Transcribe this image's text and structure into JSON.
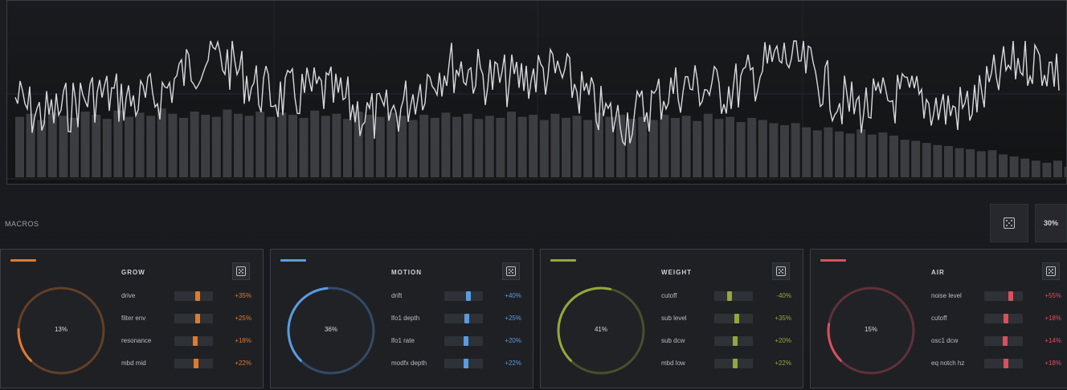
{
  "waveform": {
    "amplitude": [
      0.58,
      0.61,
      0.55,
      0.62,
      0.59,
      0.57,
      0.63,
      0.6,
      0.56,
      0.64,
      0.58,
      0.62,
      0.59,
      0.66,
      0.61,
      0.57,
      0.63,
      0.6,
      0.58,
      0.65,
      0.61,
      0.59,
      0.63,
      0.58,
      0.62,
      0.6,
      0.57,
      0.64,
      0.59,
      0.61,
      0.56,
      0.63,
      0.6,
      0.58,
      0.62,
      0.59,
      0.55,
      0.6,
      0.57,
      0.62,
      0.58,
      0.61,
      0.56,
      0.59,
      0.57,
      0.63,
      0.58,
      0.6,
      0.55,
      0.61,
      0.57,
      0.59,
      0.55,
      0.62,
      0.58,
      0.6,
      0.56,
      0.58,
      0.55,
      0.6,
      0.57,
      0.59,
      0.54,
      0.61,
      0.56,
      0.58,
      0.53,
      0.57,
      0.55,
      0.52,
      0.5,
      0.52,
      0.48,
      0.45,
      0.48,
      0.44,
      0.42,
      0.46,
      0.41,
      0.43,
      0.4,
      0.36,
      0.35,
      0.33,
      0.31,
      0.3,
      0.28,
      0.27,
      0.25,
      0.26,
      0.22,
      0.2,
      0.18,
      0.16,
      0.14,
      0.16,
      0.1,
      0.06,
      0.03,
      0.02
    ]
  },
  "macros_label": "MACROS",
  "global_random_value": "30%",
  "cards": [
    {
      "title": "GROW",
      "color": "#e07a2c",
      "knob_value": "13%",
      "knob_fraction": 0.13,
      "params": [
        {
          "name": "drive",
          "value": "+35%",
          "fraction": 0.6
        },
        {
          "name": "filter env",
          "value": "+25%",
          "fraction": 0.6
        },
        {
          "name": "resonance",
          "value": "+18%",
          "fraction": 0.55
        },
        {
          "name": "mbd mid",
          "value": "+22%",
          "fraction": 0.57
        }
      ]
    },
    {
      "title": "MOTION",
      "color": "#5b9be0",
      "knob_value": "36%",
      "knob_fraction": 0.36,
      "params": [
        {
          "name": "drift",
          "value": "+40%",
          "fraction": 0.62
        },
        {
          "name": "lfo1 depth",
          "value": "+25%",
          "fraction": 0.58
        },
        {
          "name": "lfo1 rate",
          "value": "+20%",
          "fraction": 0.56
        },
        {
          "name": "modfx depth",
          "value": "+22%",
          "fraction": 0.56
        }
      ]
    },
    {
      "title": "WEIGHT",
      "color": "#93a83a",
      "knob_value": "41%",
      "knob_fraction": 0.41,
      "params": [
        {
          "name": "cutoff",
          "value": "-40%",
          "fraction": 0.4
        },
        {
          "name": "sub level",
          "value": "+35%",
          "fraction": 0.58
        },
        {
          "name": "sub dcw",
          "value": "+20%",
          "fraction": 0.55
        },
        {
          "name": "mbd low",
          "value": "+22%",
          "fraction": 0.55
        }
      ]
    },
    {
      "title": "AIR",
      "color": "#d9505e",
      "knob_value": "15%",
      "knob_fraction": 0.15,
      "params": [
        {
          "name": "noise level",
          "value": "+55%",
          "fraction": 0.68
        },
        {
          "name": "cutoff",
          "value": "+18%",
          "fraction": 0.57
        },
        {
          "name": "osc1 dcw",
          "value": "+14%",
          "fraction": 0.55
        },
        {
          "name": "eq notch hz",
          "value": "+18%",
          "fraction": 0.57
        }
      ]
    }
  ]
}
